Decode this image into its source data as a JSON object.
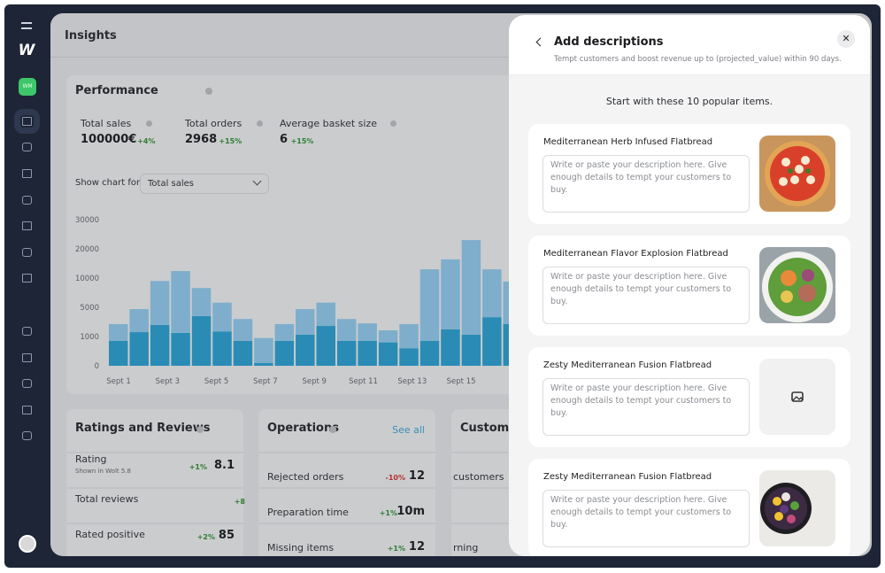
{
  "sidebar": {
    "logo": "W",
    "store_badge": "WM"
  },
  "insights": {
    "title": "Insights",
    "performance": {
      "title": "Performance",
      "metrics": [
        {
          "label": "Total sales",
          "value": "100000€",
          "change": "+4%"
        },
        {
          "label": "Total orders",
          "value": "2968",
          "change": "+15%"
        },
        {
          "label": "Average basket size",
          "value": "6",
          "change": "+15%"
        }
      ],
      "chart_control": {
        "label": "Show chart for",
        "selected": "Total sales"
      },
      "chart": {
        "type": "bar",
        "stacked": true,
        "xlabels": [
          "Sept 1",
          "Sept 3",
          "Sept 5",
          "Sept 7",
          "Sept 9",
          "Sept 11",
          "Sept 13",
          "Sept 15"
        ],
        "series": [
          {
            "color": "#2a8cb5",
            "values": [
              850,
              1600,
              2600,
              1500,
              3800,
              1700,
              850,
              100,
              850,
              1250,
              2450,
              850,
              850,
              800,
              600,
              850,
              2000,
              1250,
              3650,
              2700
            ]
          },
          {
            "color": "#7eaecb",
            "values": [
              1850,
              3150,
              6900,
              10900,
              4500,
              4100,
              2550,
              850,
              1850,
              3500,
              3350,
              2550,
              1950,
              1050,
              2100,
              12150,
              14400,
              21750,
              9350,
              6700
            ]
          }
        ],
        "ylim": [
          0,
          30000
        ],
        "yticks": [
          0,
          1000,
          5000,
          10000,
          20000,
          30000
        ]
      }
    },
    "ratings": {
      "title": "Ratings and Reviews",
      "rows": [
        {
          "label": "Rating",
          "sub": "Shown in Wolt 5.8",
          "change": "+1%",
          "value": "8.1"
        },
        {
          "label": "Total reviews",
          "change": "+8"
        },
        {
          "label": "Rated positive",
          "change": "+2%",
          "value": "85"
        }
      ]
    },
    "operations": {
      "title": "Operations",
      "link": "See all",
      "rows": [
        {
          "label": "Rejected orders",
          "change": "-10%",
          "value": "12"
        },
        {
          "label": "Preparation time",
          "change": "+1%",
          "value": "10m"
        },
        {
          "label": "Missing items",
          "change": "+1%",
          "value": "12"
        }
      ]
    },
    "customers": {
      "title": "Custome",
      "rows": [
        "customers",
        "rning"
      ]
    }
  },
  "modal": {
    "title": "Add descriptions",
    "subtitle": "Tempt customers and boost revenue up to (projected_value) within 90 days.",
    "intro": "Start with these 10 popular items.",
    "items": [
      {
        "name": "Mediterranean Herb Infused Flatbread",
        "placeholder": "Write or paste your description here. Give enough details to tempt your customers to buy."
      },
      {
        "name": "Mediterranean Flavor Explosion Flatbread",
        "placeholder": "Write or paste your description here. Give enough details to tempt your customers to buy."
      },
      {
        "name": "Zesty Mediterranean Fusion Flatbread",
        "placeholder": "Write or paste your description here. Give enough details to tempt your customers to buy."
      },
      {
        "name": "Zesty Mediterranean Fusion Flatbread",
        "placeholder": "Write or paste your description here. Give enough details to tempt your customers to buy."
      }
    ]
  }
}
